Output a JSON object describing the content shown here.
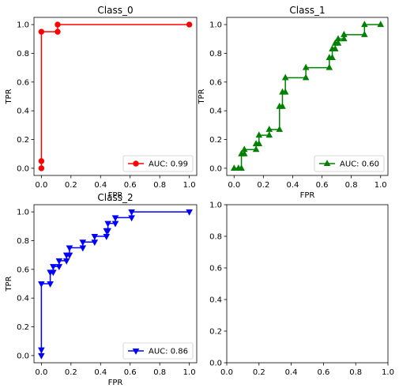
{
  "chart_data": [
    {
      "type": "line",
      "title": "Class_0",
      "xlabel": "FPR",
      "ylabel": "TPR",
      "xlim": [
        -0.05,
        1.05
      ],
      "ylim": [
        -0.05,
        1.05
      ],
      "xticks": [
        "0.0",
        "0.2",
        "0.4",
        "0.6",
        "0.8",
        "1.0"
      ],
      "yticks": [
        "0.0",
        "0.2",
        "0.4",
        "0.6",
        "0.8",
        "1.0"
      ],
      "grid": false,
      "legend_position": "lower-right",
      "series": [
        {
          "name": "AUC: 0.99",
          "color": "#ff0000",
          "marker": "circle",
          "x": [
            0.0,
            0.0,
            0.0,
            0.11,
            0.11,
            1.0
          ],
          "y": [
            0.0,
            0.05,
            0.95,
            0.95,
            1.0,
            1.0
          ]
        }
      ]
    },
    {
      "type": "line",
      "title": "Class_1",
      "xlabel": "FPR",
      "ylabel": "TPR",
      "xlim": [
        -0.05,
        1.05
      ],
      "ylim": [
        -0.05,
        1.05
      ],
      "xticks": [
        "0.0",
        "0.2",
        "0.4",
        "0.6",
        "0.8",
        "1.0"
      ],
      "yticks": [
        "0.0",
        "0.2",
        "0.4",
        "0.6",
        "0.8",
        "1.0"
      ],
      "grid": false,
      "legend_position": "lower-right",
      "series": [
        {
          "name": "AUC: 0.60",
          "color": "#008000",
          "marker": "triangle-up",
          "x": [
            0.0,
            0.03,
            0.05,
            0.05,
            0.07,
            0.07,
            0.15,
            0.15,
            0.17,
            0.17,
            0.24,
            0.24,
            0.31,
            0.31,
            0.33,
            0.33,
            0.35,
            0.35,
            0.49,
            0.49,
            0.65,
            0.65,
            0.67,
            0.67,
            0.69,
            0.69,
            0.71,
            0.71,
            0.75,
            0.75,
            0.89,
            0.89,
            1.0
          ],
          "y": [
            0.0,
            0.0,
            0.0,
            0.1,
            0.1,
            0.13,
            0.13,
            0.17,
            0.17,
            0.23,
            0.23,
            0.27,
            0.27,
            0.43,
            0.43,
            0.53,
            0.53,
            0.63,
            0.63,
            0.7,
            0.7,
            0.77,
            0.77,
            0.83,
            0.83,
            0.87,
            0.87,
            0.9,
            0.9,
            0.93,
            0.93,
            1.0,
            1.0
          ]
        }
      ]
    },
    {
      "type": "line",
      "title": "Class_2",
      "xlabel": "FPR",
      "ylabel": "TPR",
      "xlim": [
        -0.05,
        1.05
      ],
      "ylim": [
        -0.05,
        1.05
      ],
      "xticks": [
        "0.0",
        "0.2",
        "0.4",
        "0.6",
        "0.8",
        "1.0"
      ],
      "yticks": [
        "0.0",
        "0.2",
        "0.4",
        "0.6",
        "0.8",
        "1.0"
      ],
      "grid": false,
      "legend_position": "lower-right",
      "series": [
        {
          "name": "AUC: 0.86",
          "color": "#0000ff",
          "marker": "triangle-down",
          "x": [
            0.0,
            0.0,
            0.0,
            0.06,
            0.06,
            0.08,
            0.08,
            0.12,
            0.12,
            0.17,
            0.17,
            0.19,
            0.19,
            0.28,
            0.28,
            0.36,
            0.36,
            0.44,
            0.44,
            0.45,
            0.45,
            0.5,
            0.5,
            0.61,
            0.61,
            1.0
          ],
          "y": [
            0.0,
            0.04,
            0.5,
            0.5,
            0.58,
            0.58,
            0.62,
            0.62,
            0.66,
            0.66,
            0.7,
            0.7,
            0.75,
            0.75,
            0.79,
            0.79,
            0.83,
            0.83,
            0.87,
            0.87,
            0.92,
            0.92,
            0.96,
            0.96,
            1.0,
            1.0
          ]
        }
      ]
    },
    {
      "type": "line",
      "title": "",
      "xlabel": "",
      "ylabel": "",
      "xlim": [
        0,
        1
      ],
      "ylim": [
        0,
        1
      ],
      "xticks": [
        "0.0",
        "0.2",
        "0.4",
        "0.6",
        "0.8",
        "1.0"
      ],
      "yticks": [
        "0.0",
        "0.2",
        "0.4",
        "0.6",
        "0.8",
        "1.0"
      ],
      "grid": false,
      "series": []
    }
  ]
}
